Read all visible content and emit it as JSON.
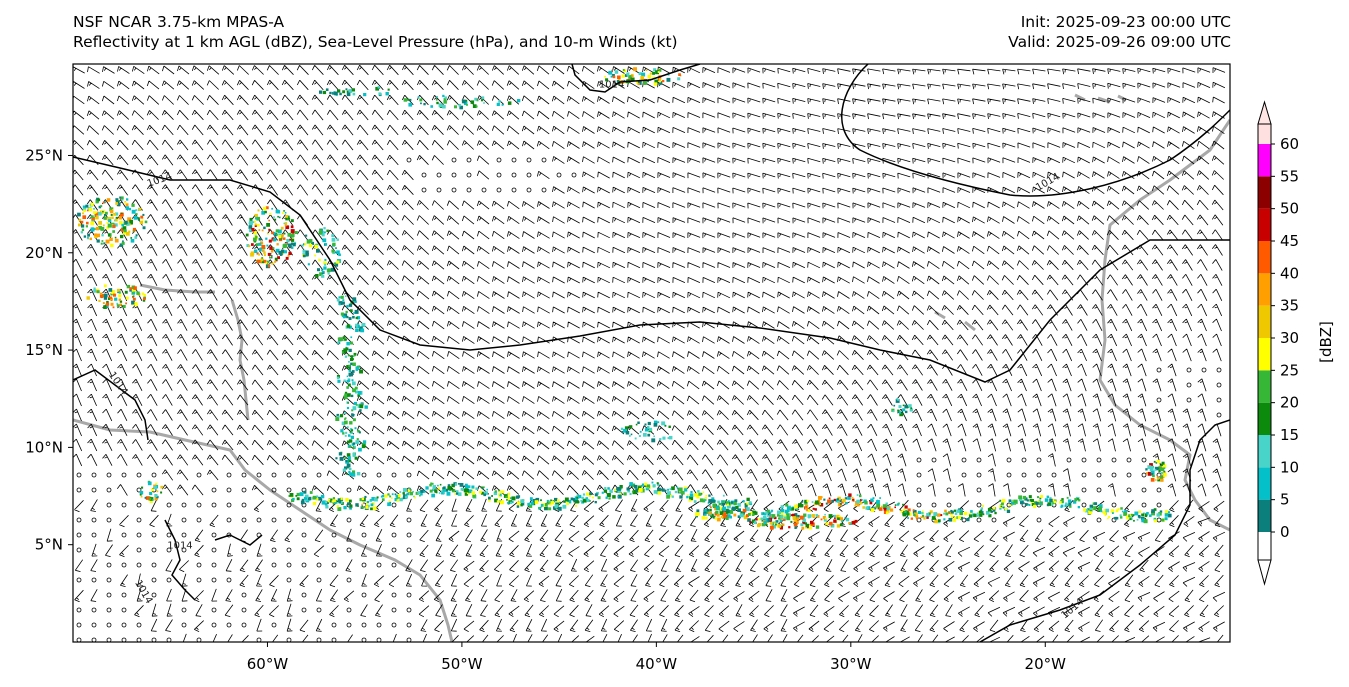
{
  "header": {
    "left_line1": "NSF NCAR 3.75-km MPAS-A",
    "left_line2": "Reflectivity at 1 km AGL (dBZ), Sea-Level Pressure (hPa), and 10-m Winds (kt)",
    "right_line1": "Init: 2025-09-23 00:00 UTC",
    "right_line2": "Valid: 2025-09-26 09:00 UTC"
  },
  "map": {
    "lon_min": -70,
    "lon_max": -10.5,
    "lat_min": 0,
    "lat_max": 29.7,
    "lat_ticks": [
      {
        "value": 25,
        "label": "25°N"
      },
      {
        "value": 20,
        "label": "20°N"
      },
      {
        "value": 15,
        "label": "15°N"
      },
      {
        "value": 10,
        "label": "10°N"
      },
      {
        "value": 5,
        "label": "5°N"
      }
    ],
    "lon_ticks": [
      {
        "value": -60,
        "label": "60°W"
      },
      {
        "value": -50,
        "label": "50°W"
      },
      {
        "value": -40,
        "label": "40°W"
      },
      {
        "value": -30,
        "label": "30°W"
      },
      {
        "value": -20,
        "label": "20°W"
      }
    ],
    "isobar_labels": [
      {
        "text": "1014",
        "lon": -42.3,
        "lat": 28.5,
        "rotation": 0
      },
      {
        "text": "1014",
        "lon": -65.5,
        "lat": 23.6,
        "rotation": -20
      },
      {
        "text": "1014",
        "lon": -19.8,
        "lat": 23.5,
        "rotation": -30
      },
      {
        "text": "1014",
        "lon": -67.8,
        "lat": 13.2,
        "rotation": 55
      },
      {
        "text": "1014",
        "lon": -64.5,
        "lat": 4.8,
        "rotation": 0
      },
      {
        "text": "1014",
        "lon": -66.5,
        "lat": 2.5,
        "rotation": 60
      },
      {
        "text": "1014",
        "lon": -18.5,
        "lat": 1.6,
        "rotation": -40
      }
    ]
  },
  "colorbar": {
    "label": "[dBZ]",
    "levels": [
      "0",
      "5",
      "10",
      "15",
      "20",
      "25",
      "30",
      "35",
      "40",
      "45",
      "50",
      "55",
      "60"
    ],
    "colors": [
      "#0a7f7c",
      "#04c0c8",
      "#48d4c8",
      "#0c8a0c",
      "#36b836",
      "#ffff00",
      "#f0c800",
      "#ffa000",
      "#ff5a00",
      "#c80000",
      "#8c0000",
      "#ff00ff",
      "#ffe0e0"
    ],
    "under_color": "#ffffff",
    "over_color": "#ffe4e4"
  }
}
